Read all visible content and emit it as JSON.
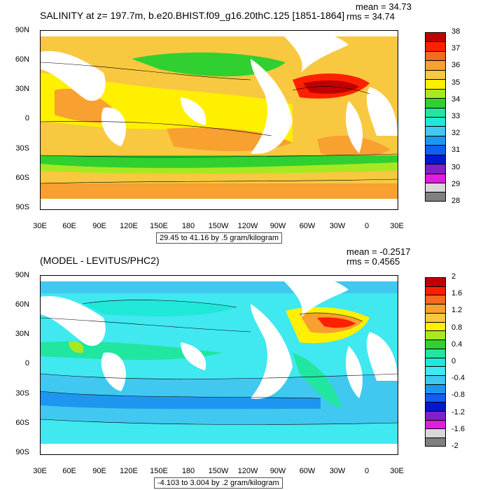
{
  "colors": {
    "ocean_bg": "#ffffff",
    "land": "#ffffff"
  },
  "top_panel": {
    "title": "SALINITY at z= 197.7m, b.e20.BHIST.f09_g16.20thC.125 [1851-1864]",
    "mean": "mean = 34.73",
    "rms": "rms = 34.74",
    "range_label": "29.45 to 41.16 by .5 gram/kilogram",
    "lat_labels": [
      "90N",
      "60N",
      "30N",
      "0",
      "30S",
      "60S",
      "90S"
    ],
    "lon_labels": [
      "30E",
      "60E",
      "90E",
      "120E",
      "150E",
      "180",
      "150W",
      "120W",
      "90W",
      "60W",
      "30W",
      "0",
      "30E"
    ],
    "colorbar": {
      "labels": [
        "38",
        "37",
        "36",
        "35",
        "34",
        "33",
        "32",
        "31",
        "30",
        "29",
        "28"
      ],
      "colors": [
        "#c00000",
        "#ff2000",
        "#f46a1e",
        "#f8a030",
        "#f8c840",
        "#fff000",
        "#a8e820",
        "#30d030",
        "#20e6a0",
        "#20e8d8",
        "#40c8f0",
        "#1e96f0",
        "#1060f0",
        "#0018d0",
        "#8020c8",
        "#e01ee0",
        "#d8d8d8",
        "#808080"
      ]
    }
  },
  "bottom_panel": {
    "title": "(MODEL - LEVITUS/PHC2)",
    "mean": "mean = -0.2517",
    "rms": "rms = 0.4565",
    "range_label": "-4.103 to 3.004 by .2 gram/kilogram",
    "lat_labels": [
      "90N",
      "60N",
      "30N",
      "0",
      "30S",
      "60S",
      "90S"
    ],
    "lon_labels": [
      "30E",
      "60E",
      "90E",
      "120E",
      "150E",
      "180",
      "150W",
      "120W",
      "90W",
      "60W",
      "30W",
      "0",
      "30E"
    ],
    "colorbar": {
      "labels": [
        "2",
        "1.6",
        "1.2",
        "0.8",
        "0.4",
        "0",
        "-0.4",
        "-0.8",
        "-1.2",
        "-1.6",
        "-2"
      ],
      "colors": [
        "#c00000",
        "#ff2000",
        "#f46a1e",
        "#f8a030",
        "#f8c840",
        "#fff000",
        "#a8e820",
        "#30d030",
        "#20e6a0",
        "#20e8d8",
        "#40e8f0",
        "#40c8f0",
        "#1e96f0",
        "#1060f0",
        "#0018d0",
        "#8020c8",
        "#e01ee0",
        "#d8d8d8",
        "#808080"
      ]
    }
  }
}
